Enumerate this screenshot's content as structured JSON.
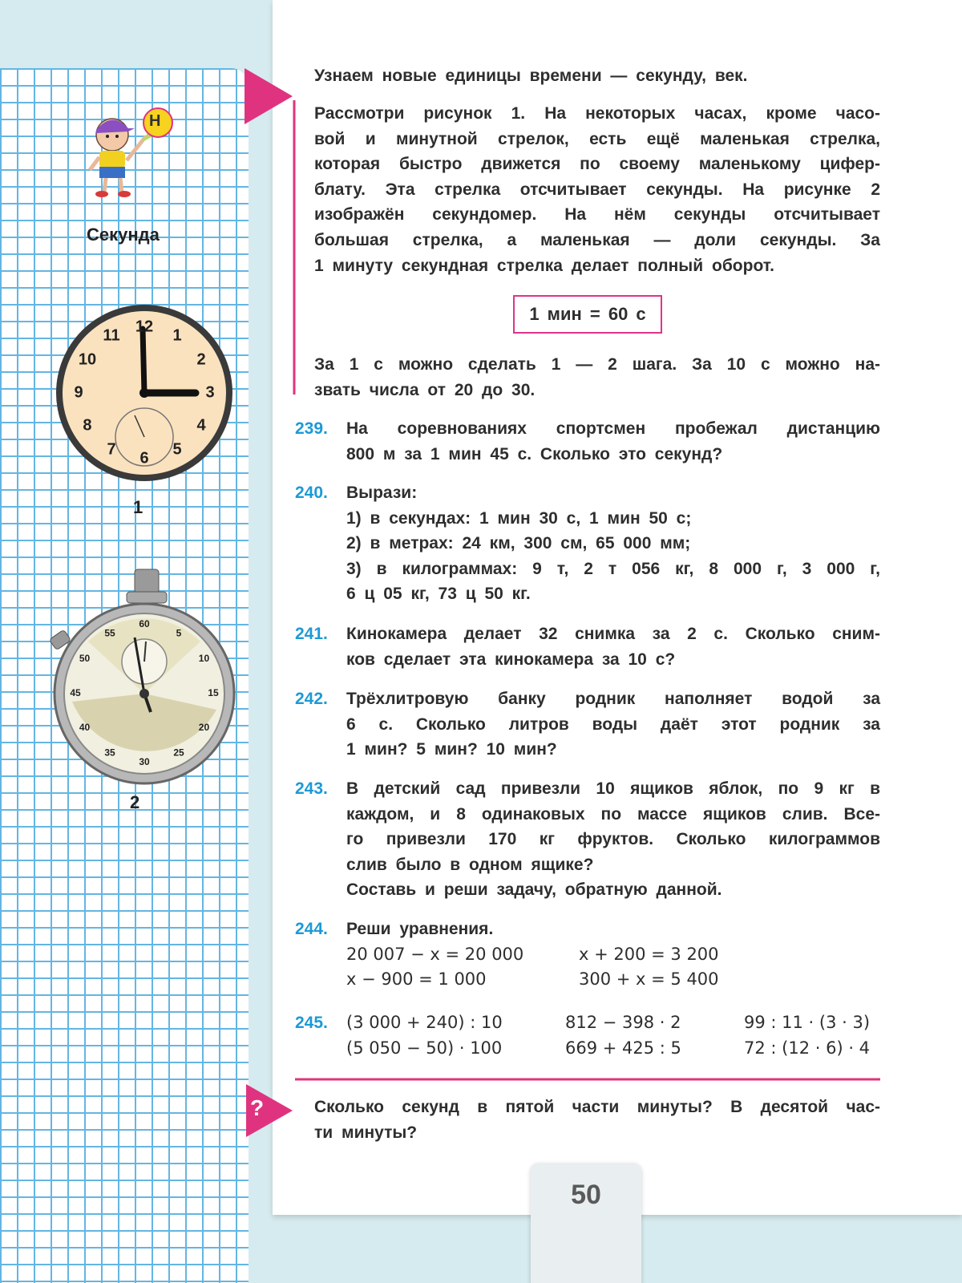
{
  "sidebar": {
    "badge": "Н",
    "term": "Секунда",
    "figure_labels": [
      "1",
      "2"
    ]
  },
  "clock": {
    "numerals": [
      "12",
      "1",
      "2",
      "3",
      "4",
      "5",
      "6",
      "7",
      "8",
      "9",
      "10",
      "11"
    ]
  },
  "stopwatch": {
    "numerals": [
      "60",
      "5",
      "10",
      "15",
      "20",
      "25",
      "30",
      "35",
      "40",
      "45",
      "50",
      "55"
    ]
  },
  "intro": {
    "heading": "Узнаем новые единицы времени — секунду, век.",
    "paragraph": [
      "Рассмотри рисунок 1. На некоторых часах, кроме часо-",
      "вой и минутной стрелок, есть ещё маленькая стрелка,",
      "которая быстро движется по своему маленькому цифер-",
      "блату. Эта стрелка отсчитывает секунды. На рисунке 2",
      "изображён секундомер. На нём секунды отсчитывает",
      "большая стрелка, а маленькая — доли секунды. За",
      "1 минуту секундная стрелка делает полный оборот."
    ],
    "formula": "1 мин = 60 с",
    "paragraph2": [
      "За 1 с можно сделать 1 — 2 шага. За 10 с можно на-",
      "звать числа от 20 до 30."
    ]
  },
  "exercises": [
    {
      "number": "239.",
      "lines": [
        "На соревнованиях спортсмен пробежал дистанцию",
        "800 м за 1 мин 45 с. Сколько это секунд?"
      ]
    },
    {
      "number": "240.",
      "lines": [
        "Вырази:"
      ],
      "items": [
        [
          "1) в секундах: 1 мин 30 с, 1 мин 50 с;"
        ],
        [
          "2) в метрах: 24 км, 300 см, 65 000 мм;"
        ],
        [
          "3) в килограммах: 9 т, 2 т 056 кг, 8 000 г, 3 000 г,",
          "6 ц 05 кг, 73 ц 50 кг."
        ]
      ]
    },
    {
      "number": "241.",
      "lines": [
        "Кинокамера делает 32 снимка за 2 с. Сколько сним-",
        "ков сделает эта кинокамера за 10 с?"
      ]
    },
    {
      "number": "242.",
      "lines": [
        "Трёхлитровую банку родник наполняет водой за",
        "6 с. Сколько литров воды даёт этот родник за",
        "1 мин? 5 мин? 10 мин?"
      ]
    },
    {
      "number": "243.",
      "lines": [
        "В детский сад привезли 10 ящиков яблок, по 9 кг в",
        "каждом, и 8 одинаковых по массе ящиков слив. Все-",
        "го привезли 170 кг фруктов. Сколько килограммов",
        "слив было в одном ящике?"
      ],
      "extra": "Составь и реши задачу, обратную данной."
    },
    {
      "number": "244.",
      "lines": [
        "Реши уравнения."
      ],
      "columns": [
        [
          "20 007 − x = 20 000",
          "x − 900 = 1 000"
        ],
        [
          "x + 200 = 3 200",
          "300 + x = 5 400"
        ]
      ]
    },
    {
      "number": "245.",
      "columns": [
        [
          "(3 000 + 240) : 10",
          "(5 050 − 50) · 100"
        ],
        [
          "812 − 398 · 2",
          "669 + 425 : 5"
        ],
        [
          "99 : 11 · (3 · 3)",
          "72 : (12 · 6) · 4"
        ]
      ]
    }
  ],
  "question": {
    "icon": "?",
    "lines": [
      "Сколько секунд в пятой части минуты? В десятой час-",
      "ти минуты?"
    ]
  },
  "page_number": "50"
}
